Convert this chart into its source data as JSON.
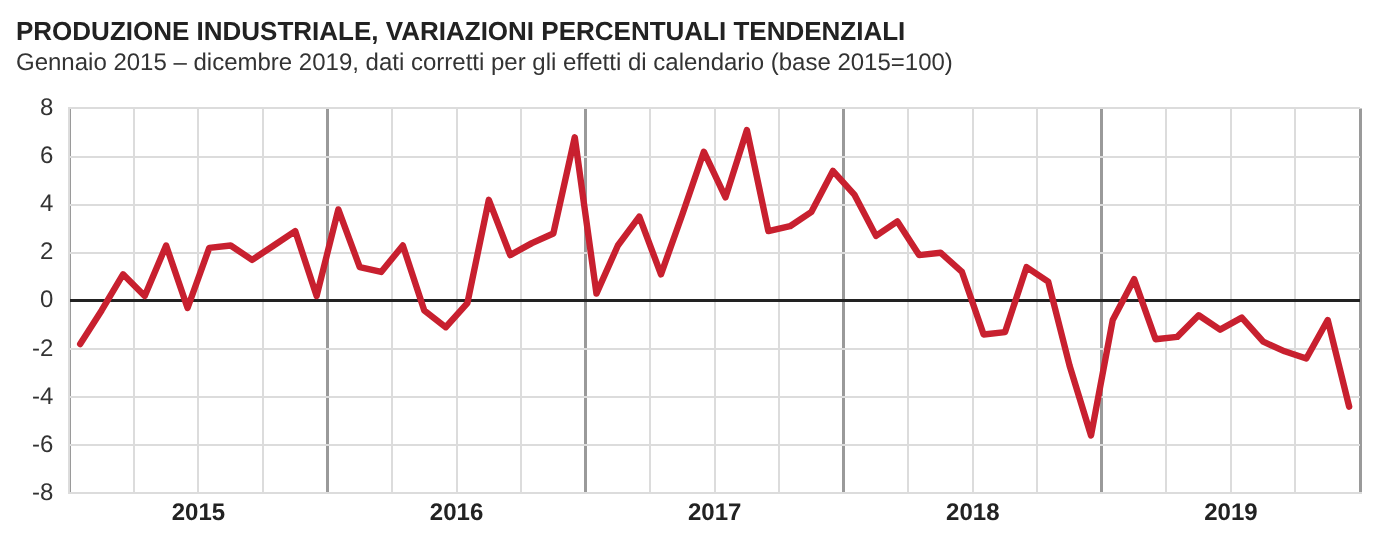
{
  "chart_data": {
    "type": "line",
    "title": "PRODUZIONE INDUSTRIALE, VARIAZIONI PERCENTUALI TENDENZIALI",
    "subtitle": "Gennaio 2015 – dicembre 2019, dati corretti per gli effetti di calendario (base 2015=100)",
    "x": [
      2015.042,
      2015.125,
      2015.208,
      2015.292,
      2015.375,
      2015.458,
      2015.542,
      2015.625,
      2015.708,
      2015.792,
      2015.875,
      2015.958,
      2016.042,
      2016.125,
      2016.208,
      2016.292,
      2016.375,
      2016.458,
      2016.542,
      2016.625,
      2016.708,
      2016.792,
      2016.875,
      2016.958,
      2017.042,
      2017.125,
      2017.208,
      2017.292,
      2017.375,
      2017.458,
      2017.542,
      2017.625,
      2017.708,
      2017.792,
      2017.875,
      2017.958,
      2018.042,
      2018.125,
      2018.208,
      2018.292,
      2018.375,
      2018.458,
      2018.542,
      2018.625,
      2018.708,
      2018.792,
      2018.875,
      2018.958,
      2019.042,
      2019.125,
      2019.208,
      2019.292,
      2019.375,
      2019.458,
      2019.542,
      2019.625,
      2019.708,
      2019.792,
      2019.875,
      2019.958
    ],
    "series": [
      {
        "color": "#c8202f",
        "values": [
          -1.8,
          -0.4,
          1.1,
          0.2,
          2.3,
          -0.3,
          2.2,
          2.3,
          1.7,
          2.3,
          2.9,
          0.2,
          3.8,
          1.4,
          1.2,
          2.3,
          -0.4,
          -1.1,
          -0.1,
          4.2,
          1.9,
          2.4,
          2.8,
          6.8,
          0.3,
          2.3,
          3.5,
          1.1,
          3.6,
          6.2,
          4.3,
          7.1,
          2.9,
          3.1,
          3.7,
          5.4,
          4.4,
          2.7,
          3.3,
          1.9,
          2.0,
          1.2,
          -1.4,
          -1.3,
          1.4,
          0.8,
          -2.7,
          -5.6,
          -0.8,
          0.9,
          -1.6,
          -1.5,
          -0.6,
          -1.2,
          -0.7,
          -1.7,
          -2.1,
          -2.4,
          -0.8,
          -4.4
        ]
      }
    ],
    "xlim": [
      2015,
      2020
    ],
    "xticks": [
      {
        "value": 2015,
        "label": null
      },
      {
        "value": 2015.25,
        "label": null
      },
      {
        "value": 2015.5,
        "label": "2015"
      },
      {
        "value": 2015.75,
        "label": null
      },
      {
        "value": 2016,
        "label": null
      },
      {
        "value": 2016.25,
        "label": null
      },
      {
        "value": 2016.5,
        "label": "2016"
      },
      {
        "value": 2016.75,
        "label": null
      },
      {
        "value": 2017,
        "label": null
      },
      {
        "value": 2017.25,
        "label": null
      },
      {
        "value": 2017.5,
        "label": "2017"
      },
      {
        "value": 2017.75,
        "label": null
      },
      {
        "value": 2018,
        "label": null
      },
      {
        "value": 2018.25,
        "label": null
      },
      {
        "value": 2018.5,
        "label": "2018"
      },
      {
        "value": 2018.75,
        "label": null
      },
      {
        "value": 2019,
        "label": null
      },
      {
        "value": 2019.25,
        "label": null
      },
      {
        "value": 2019.5,
        "label": "2019"
      },
      {
        "value": 2019.75,
        "label": null
      },
      {
        "value": 2020,
        "label": null
      }
    ],
    "ylim": [
      -8,
      8
    ],
    "yticks": [
      -8,
      -6,
      -4,
      -2,
      0,
      2,
      4,
      6,
      8
    ],
    "grid": true,
    "legend": false,
    "marker": "none",
    "line_style": "solid"
  }
}
